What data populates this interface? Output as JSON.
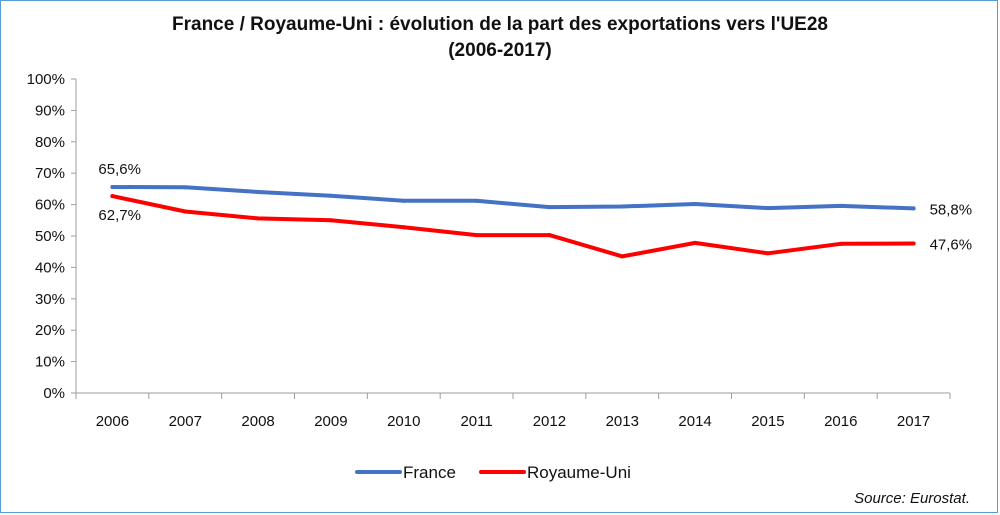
{
  "chart_data": {
    "type": "line",
    "title": "France / Royaume-Uni : évolution de la part des exportations vers l'UE28",
    "subtitle": "(2006-2017)",
    "categories": [
      "2006",
      "2007",
      "2008",
      "2009",
      "2010",
      "2011",
      "2012",
      "2013",
      "2014",
      "2015",
      "2016",
      "2017"
    ],
    "y_ticks": [
      "0%",
      "10%",
      "20%",
      "30%",
      "40%",
      "50%",
      "60%",
      "70%",
      "80%",
      "90%",
      "100%"
    ],
    "ylim": [
      0,
      100
    ],
    "grid": false,
    "legend_placement": "bottom",
    "series": [
      {
        "name": "France",
        "color": "#4472c4",
        "values": [
          65.6,
          65.5,
          64.0,
          62.8,
          61.2,
          61.2,
          59.2,
          59.4,
          60.2,
          58.9,
          59.6,
          58.8
        ],
        "labels": {
          "first": "65,6%",
          "last": "58,8%"
        }
      },
      {
        "name": "Royaume-Uni",
        "color": "#ff0000",
        "values": [
          62.7,
          57.8,
          55.6,
          55.0,
          52.8,
          50.3,
          50.3,
          43.5,
          47.8,
          44.5,
          47.5,
          47.6
        ],
        "labels": {
          "first": "62,7%",
          "last": "47,6%"
        }
      }
    ]
  },
  "footer": {
    "source": "Source: Eurostat."
  }
}
